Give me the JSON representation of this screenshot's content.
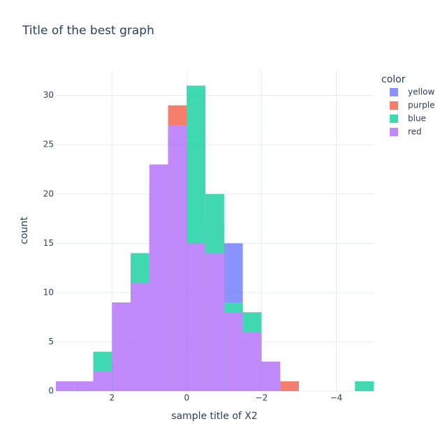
{
  "chart_data": {
    "type": "histogram",
    "title": "Title of the best graph",
    "x_label": "sample title of X2",
    "y_label": "count",
    "legend_title": "color",
    "bins": [
      3.5,
      3,
      2.5,
      2,
      1.5,
      1,
      0.5,
      0,
      -0.5,
      -1,
      -1.5,
      -2,
      -2.5,
      -3,
      -3.5,
      -4,
      -4.5,
      -5
    ],
    "series": [
      {
        "name": "yellow",
        "color": "#636efa",
        "values": [
          0,
          0,
          3,
          4,
          12,
          21,
          22,
          19,
          17,
          15,
          6,
          1,
          0,
          0,
          0,
          0,
          0
        ]
      },
      {
        "name": "purple",
        "color": "#ef553b",
        "values": [
          0,
          0,
          2,
          4,
          11,
          20,
          29,
          17,
          16,
          8,
          6,
          2,
          1,
          0,
          0,
          0,
          0
        ]
      },
      {
        "name": "blue",
        "color": "#00cc96",
        "values": [
          0,
          0,
          4,
          4,
          14,
          16,
          21,
          31,
          20,
          9,
          8,
          1,
          0,
          0,
          0,
          0,
          1
        ]
      },
      {
        "name": "red",
        "color": "#ab63fa",
        "values": [
          1,
          1,
          2,
          9,
          11,
          23,
          27,
          15,
          14,
          8,
          6,
          3,
          0,
          0,
          0,
          0,
          0
        ]
      }
    ],
    "xlim": [
      3.5,
      -5
    ],
    "xticks": [
      2,
      0,
      {
        "value": -2,
        "label": "−2"
      },
      {
        "value": -4,
        "label": "−4"
      }
    ],
    "ylim": [
      0,
      32.6
    ],
    "yticks": [
      0,
      5,
      10,
      15,
      20,
      25,
      30
    ],
    "grid": true,
    "opacity": 0.75
  }
}
